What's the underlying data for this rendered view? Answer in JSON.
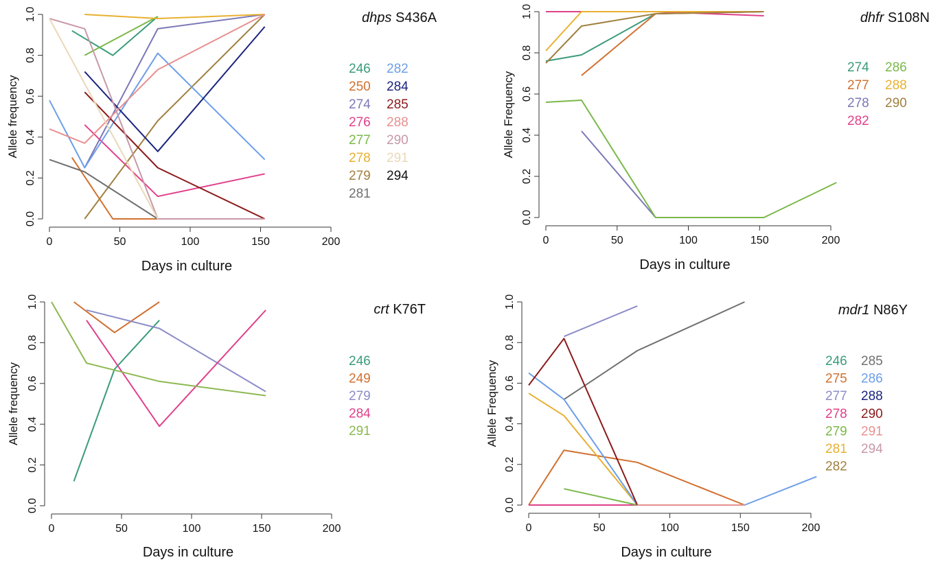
{
  "chart_data": [
    {
      "type": "line",
      "gene": "dhps",
      "mutation": "S436A",
      "xlabel": "Days in culture",
      "ylabel": "Allele frequency",
      "xlim": [
        0,
        200
      ],
      "ylim": [
        0,
        1
      ],
      "xticks": [
        "0",
        "50",
        "100",
        "150",
        "200"
      ],
      "yticks": [
        "0.0",
        "0.2",
        "0.4",
        "0.6",
        "0.8",
        "1.0"
      ],
      "legend_columns": 2,
      "series": [
        {
          "name": "246",
          "color": "#3a9b7a",
          "x": [
            16,
            45,
            77
          ],
          "y": [
            0.92,
            0.8,
            0.99
          ]
        },
        {
          "name": "250",
          "color": "#d07030",
          "x": [
            16,
            45,
            77
          ],
          "y": [
            0.3,
            0.0,
            0.0
          ]
        },
        {
          "name": "274",
          "color": "#7b78b8",
          "x": [
            25,
            77,
            153
          ],
          "y": [
            0.25,
            0.93,
            1.0
          ]
        },
        {
          "name": "276",
          "color": "#e0408a",
          "x": [
            25,
            77,
            153
          ],
          "y": [
            0.46,
            0.11,
            0.22
          ]
        },
        {
          "name": "277",
          "color": "#7ab848",
          "x": [
            25,
            77
          ],
          "y": [
            0.8,
            0.99
          ]
        },
        {
          "name": "278",
          "color": "#e8b030",
          "x": [
            25,
            77,
            153
          ],
          "y": [
            1.0,
            0.98,
            1.0
          ]
        },
        {
          "name": "279",
          "color": "#a08040",
          "x": [
            25,
            77,
            153
          ],
          "y": [
            0.0,
            0.48,
            1.0
          ]
        },
        {
          "name": "281",
          "color": "#707070",
          "x": [
            0,
            25,
            77
          ],
          "y": [
            0.29,
            0.23,
            0.0
          ]
        },
        {
          "name": "282",
          "color": "#6c9ee8",
          "x": [
            0,
            25,
            77,
            153
          ],
          "y": [
            0.58,
            0.25,
            0.81,
            0.29
          ]
        },
        {
          "name": "284",
          "color": "#1a237e",
          "x": [
            25,
            77,
            153
          ],
          "y": [
            0.72,
            0.33,
            0.94
          ]
        },
        {
          "name": "285",
          "color": "#8b1a1a",
          "x": [
            25,
            77,
            153
          ],
          "y": [
            0.62,
            0.25,
            0.0
          ]
        },
        {
          "name": "288",
          "color": "#e89090",
          "x": [
            0,
            25,
            77,
            153
          ],
          "y": [
            0.44,
            0.37,
            0.73,
            1.0
          ]
        },
        {
          "name": "290",
          "color": "#c898a8",
          "x": [
            0,
            25,
            77,
            153
          ],
          "y": [
            0.98,
            0.93,
            0.0,
            0.0
          ]
        },
        {
          "name": "291",
          "color": "#ead8b8",
          "x": [
            0,
            77
          ],
          "y": [
            0.98,
            0.0
          ]
        },
        {
          "name": "294",
          "color": "#111111",
          "x": [],
          "y": []
        }
      ]
    },
    {
      "type": "line",
      "gene": "dhfr",
      "mutation": "S108N",
      "xlabel": "Days in culture",
      "ylabel": "Allele Frequency",
      "xlim": [
        0,
        200
      ],
      "ylim": [
        0,
        1
      ],
      "xticks": [
        "0",
        "50",
        "100",
        "150",
        "200"
      ],
      "yticks": [
        "0.0",
        "0.2",
        "0.4",
        "0.6",
        "0.8",
        "1.0"
      ],
      "legend_columns": 2,
      "series": [
        {
          "name": "274",
          "color": "#3a9b7a",
          "x": [
            0,
            25,
            77,
            153
          ],
          "y": [
            0.76,
            0.79,
            0.99,
            1.0
          ]
        },
        {
          "name": "277",
          "color": "#d07030",
          "x": [
            25,
            77,
            153
          ],
          "y": [
            0.69,
            0.99,
            1.0
          ]
        },
        {
          "name": "278",
          "color": "#7b78b8",
          "x": [
            25,
            77
          ],
          "y": [
            0.42,
            0.0
          ]
        },
        {
          "name": "282",
          "color": "#e0408a",
          "x": [
            0,
            25,
            77,
            153
          ],
          "y": [
            1.0,
            1.0,
            1.0,
            0.98
          ]
        },
        {
          "name": "286",
          "color": "#7ab848",
          "x": [
            0,
            25,
            77,
            153,
            204
          ],
          "y": [
            0.56,
            0.57,
            0.0,
            0.0,
            0.17
          ]
        },
        {
          "name": "288",
          "color": "#e8b030",
          "x": [
            0,
            25,
            77,
            153
          ],
          "y": [
            0.81,
            1.0,
            1.0,
            1.0
          ]
        },
        {
          "name": "290",
          "color": "#a08040",
          "x": [
            0,
            25,
            77,
            153
          ],
          "y": [
            0.75,
            0.93,
            0.99,
            1.0
          ]
        }
      ]
    },
    {
      "type": "line",
      "gene": "crt",
      "mutation": "K76T",
      "xlabel": "Days in culture",
      "ylabel": "Allele frequency",
      "xlim": [
        0,
        200
      ],
      "ylim": [
        0,
        1
      ],
      "xticks": [
        "0",
        "50",
        "100",
        "150",
        "200"
      ],
      "yticks": [
        "0.0",
        "0.2",
        "0.4",
        "0.6",
        "0.8",
        "1.0"
      ],
      "legend_columns": 1,
      "series": [
        {
          "name": "246",
          "color": "#3a9b7a",
          "x": [
            16,
            45,
            77
          ],
          "y": [
            0.12,
            0.67,
            0.91
          ]
        },
        {
          "name": "249",
          "color": "#d07030",
          "x": [
            16,
            45,
            77
          ],
          "y": [
            1.0,
            0.85,
            1.0
          ]
        },
        {
          "name": "279",
          "color": "#8c8cc8",
          "x": [
            25,
            77,
            153
          ],
          "y": [
            0.96,
            0.87,
            0.56
          ]
        },
        {
          "name": "284",
          "color": "#e0408a",
          "x": [
            25,
            77,
            153
          ],
          "y": [
            0.91,
            0.39,
            0.96
          ]
        },
        {
          "name": "291",
          "color": "#8cb850",
          "x": [
            0,
            25,
            77,
            153
          ],
          "y": [
            1.0,
            0.7,
            0.61,
            0.54
          ]
        }
      ]
    },
    {
      "type": "line",
      "gene": "mdr1",
      "mutation": "N86Y",
      "xlabel": "Days in culture",
      "ylabel": "Allele Frequency",
      "xlim": [
        0,
        200
      ],
      "ylim": [
        0,
        1
      ],
      "xticks": [
        "0",
        "50",
        "100",
        "150",
        "200"
      ],
      "yticks": [
        "0.0",
        "0.2",
        "0.4",
        "0.6",
        "0.8",
        "1.0"
      ],
      "legend_columns": 2,
      "series": [
        {
          "name": "246",
          "color": "#3a9b7a",
          "x": [],
          "y": []
        },
        {
          "name": "275",
          "color": "#d07030",
          "x": [
            0,
            25,
            77,
            153
          ],
          "y": [
            0.0,
            0.27,
            0.21,
            0.0
          ]
        },
        {
          "name": "277",
          "color": "#8c8cc8",
          "x": [
            25,
            77
          ],
          "y": [
            0.83,
            0.98
          ]
        },
        {
          "name": "278",
          "color": "#e0408a",
          "x": [
            0,
            77
          ],
          "y": [
            0.0,
            0.0
          ]
        },
        {
          "name": "279",
          "color": "#7ab848",
          "x": [
            25,
            77
          ],
          "y": [
            0.08,
            0.0
          ]
        },
        {
          "name": "281",
          "color": "#e8b030",
          "x": [
            0,
            25,
            77
          ],
          "y": [
            0.55,
            0.44,
            0.0
          ]
        },
        {
          "name": "282",
          "color": "#a08040",
          "x": [],
          "y": []
        },
        {
          "name": "285",
          "color": "#707070",
          "x": [
            25,
            77,
            153
          ],
          "y": [
            0.52,
            0.76,
            1.0
          ]
        },
        {
          "name": "286",
          "color": "#6c9ee8",
          "x": [
            0,
            25,
            77,
            153,
            204
          ],
          "y": [
            0.65,
            0.52,
            0.0,
            0.0,
            0.14
          ]
        },
        {
          "name": "288",
          "color": "#1a237e",
          "x": [],
          "y": []
        },
        {
          "name": "290",
          "color": "#8b1a1a",
          "x": [
            0,
            25,
            77
          ],
          "y": [
            0.59,
            0.82,
            0.0
          ]
        },
        {
          "name": "291",
          "color": "#e89090",
          "x": [
            77,
            153
          ],
          "y": [
            0.0,
            0.0
          ]
        },
        {
          "name": "294",
          "color": "#c898a8",
          "x": [],
          "y": []
        }
      ]
    }
  ]
}
